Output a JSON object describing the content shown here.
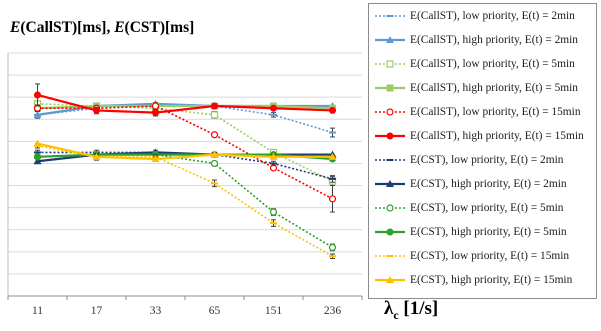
{
  "chart_data": {
    "type": "line",
    "title": "",
    "ylabel": {
      "prefix1": "E",
      "mid1": "(CallST)[ms], ",
      "prefix2": "E",
      "mid2": "(CST)[ms]"
    },
    "xlabel": {
      "main": "λ",
      "sub": "c",
      "rest": " [1/s]"
    },
    "categories": [
      "11",
      "17",
      "33",
      "65",
      "151",
      "236"
    ],
    "ylim": [
      0,
      11
    ],
    "grid": true,
    "legend_position": "right",
    "series": [
      {
        "name": "E(CallST), low priority, E(t) = 2min",
        "color": "#5b9bd5",
        "style": "dotted",
        "marker": "open-dash",
        "values": [
          8.2,
          8.5,
          8.6,
          8.6,
          8.2,
          7.4
        ],
        "err": [
          0.15,
          0.1,
          0.1,
          0.1,
          0.1,
          0.2
        ]
      },
      {
        "name": "E(CallST), high priority, E(t) = 2min",
        "color": "#5b9bd5",
        "style": "solid",
        "marker": "triangle",
        "values": [
          8.2,
          8.6,
          8.7,
          8.6,
          8.6,
          8.6
        ],
        "err": [
          0,
          0,
          0,
          0,
          0,
          0
        ]
      },
      {
        "name": "E(CallST), low priority, E(t) = 5min",
        "color": "#9ccc65",
        "style": "dotted",
        "marker": "open-square",
        "values": [
          8.7,
          8.6,
          8.5,
          8.2,
          6.5,
          5.2
        ],
        "err": [
          0.1,
          0.1,
          0.1,
          0.15,
          0.1,
          0.2
        ]
      },
      {
        "name": "E(CallST), high priority, E(t) = 5min",
        "color": "#9ccc65",
        "style": "solid",
        "marker": "square",
        "values": [
          8.5,
          8.6,
          8.6,
          8.6,
          8.6,
          8.5
        ],
        "err": [
          0,
          0,
          0,
          0,
          0,
          0
        ]
      },
      {
        "name": "E(CallST), low priority, E(t) = 15min",
        "color": "#ff0000",
        "style": "dotted",
        "marker": "open-circle",
        "values": [
          8.5,
          8.5,
          8.6,
          7.3,
          5.8,
          4.4
        ],
        "err": [
          0.15,
          0.1,
          0.15,
          0.1,
          0.1,
          0.6
        ]
      },
      {
        "name": "E(CallST), high priority, E(t) = 15min",
        "color": "#ff0000",
        "style": "solid",
        "marker": "circle",
        "values": [
          9.1,
          8.4,
          8.3,
          8.6,
          8.5,
          8.4
        ],
        "err": [
          0.5,
          0.15,
          0.15,
          0.1,
          0.1,
          0.1
        ]
      },
      {
        "name": "E(CST), low priority, E(t) = 2min",
        "color": "#1f3b73",
        "style": "dotted",
        "marker": "open-dash",
        "values": [
          6.5,
          6.5,
          6.5,
          6.4,
          6.0,
          5.3
        ],
        "err": [
          0.1,
          0.1,
          0.1,
          0.1,
          0.1,
          0.15
        ]
      },
      {
        "name": "E(CST), high priority, E(t) = 2min",
        "color": "#1f3b73",
        "style": "solid",
        "marker": "triangle",
        "values": [
          6.1,
          6.4,
          6.5,
          6.4,
          6.4,
          6.4
        ],
        "err": [
          0.1,
          0,
          0,
          0,
          0,
          0
        ]
      },
      {
        "name": "E(CST), low priority, E(t) = 5min",
        "color": "#2ca02c",
        "style": "dotted",
        "marker": "open-circle",
        "values": [
          6.3,
          6.4,
          6.4,
          6.0,
          3.8,
          2.2
        ],
        "err": [
          0.1,
          0.1,
          0.1,
          0.1,
          0.15,
          0.15
        ]
      },
      {
        "name": "E(CST), high priority, E(t) = 5min",
        "color": "#2ca02c",
        "style": "solid",
        "marker": "circle",
        "values": [
          6.3,
          6.4,
          6.4,
          6.4,
          6.4,
          6.2
        ],
        "err": [
          0.1,
          0,
          0,
          0,
          0,
          0.1
        ]
      },
      {
        "name": "E(CST), low priority, E(t) = 15min",
        "color": "#ffc000",
        "style": "dotted",
        "marker": "open-dash",
        "values": [
          6.8,
          6.3,
          6.3,
          5.1,
          3.3,
          1.8
        ],
        "err": [
          0.1,
          0.1,
          0.1,
          0.15,
          0.15,
          0.1
        ]
      },
      {
        "name": "E(CST), high priority, E(t) = 15min",
        "color": "#ffc000",
        "style": "solid",
        "marker": "triangle",
        "values": [
          6.9,
          6.3,
          6.2,
          6.4,
          6.3,
          6.3
        ],
        "err": [
          0,
          0.15,
          0.1,
          0.1,
          0.1,
          0.1
        ]
      }
    ]
  }
}
